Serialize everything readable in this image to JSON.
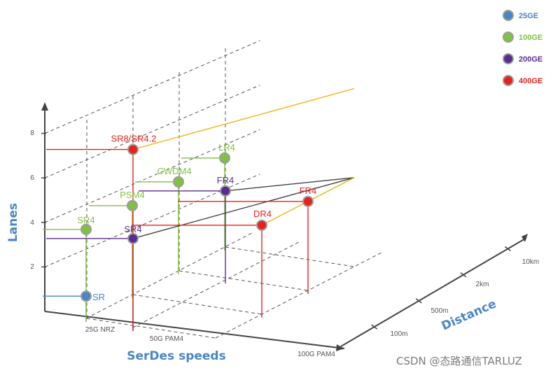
{
  "chart_data": {
    "type": "scatter",
    "projection": "3d",
    "axes": {
      "x": {
        "label": "SerDes speeds",
        "ticks": [
          "25G NRZ",
          "50G PAM4",
          "100G PAM4"
        ]
      },
      "y": {
        "label": "Lanes",
        "ticks": [
          2,
          4,
          6,
          8
        ]
      },
      "z": {
        "label": "Distance",
        "ticks": [
          "100m",
          "500m",
          "2km",
          "10km"
        ]
      }
    },
    "grid": true,
    "legend_position": "top-right",
    "series": [
      {
        "name": "25GE",
        "color": "#4a86c5",
        "points": [
          {
            "label": "SR",
            "x": "25G NRZ",
            "lanes": 1,
            "distance": "100m"
          }
        ]
      },
      {
        "name": "100GE",
        "color": "#7fc241",
        "points": [
          {
            "label": "SR4",
            "x": "25G NRZ",
            "lanes": 4,
            "distance": "100m"
          },
          {
            "label": "PSM4",
            "x": "25G NRZ",
            "lanes": 4,
            "distance": "500m"
          },
          {
            "label": "CWDM4",
            "x": "25G NRZ",
            "lanes": 4,
            "distance": "2km"
          },
          {
            "label": "LR4",
            "x": "25G NRZ",
            "lanes": 4,
            "distance": "10km"
          }
        ]
      },
      {
        "name": "200GE",
        "color": "#5b2c8f",
        "points": [
          {
            "label": "SR4",
            "x": "50G PAM4",
            "lanes": 4,
            "distance": "100m"
          },
          {
            "label": "FR4",
            "x": "50G PAM4",
            "lanes": 4,
            "distance": "2km"
          }
        ]
      },
      {
        "name": "400GE",
        "color": "#e8211e",
        "points": [
          {
            "label": "SR8/SR4.2",
            "x": "50G PAM4",
            "lanes": 8,
            "distance": "100m"
          },
          {
            "label": "DR4",
            "x": "100G PAM4",
            "lanes": 4,
            "distance": "500m"
          },
          {
            "label": "FR4",
            "x": "100G PAM4",
            "lanes": 4,
            "distance": "2km"
          }
        ]
      }
    ]
  },
  "watermark": "CSDN @态路通信TARLUZ"
}
